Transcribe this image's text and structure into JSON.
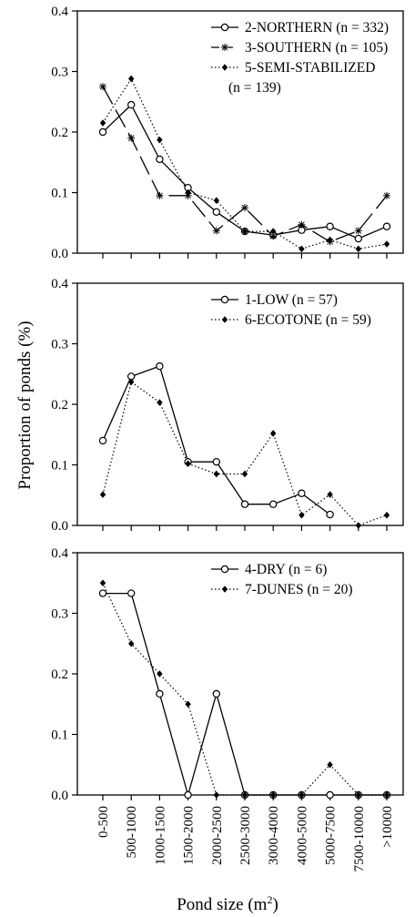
{
  "figure": {
    "ylabel": "Proportion of ponds (%)",
    "xlabel": "Pond size (m",
    "xlabel_sup": "2",
    "xlabel_tail": ")"
  },
  "chart_data": [
    {
      "type": "line",
      "categories": [
        "0-500",
        "500-1000",
        "1000-1500",
        "1500-2000",
        "2000-2500",
        "2500-3000",
        "3000-4000",
        "4000-5000",
        "5000-7500",
        "7500-10000",
        ">10000"
      ],
      "ylim": [
        0,
        0.4
      ],
      "yticks": [
        "0.0",
        "0.1",
        "0.2",
        "0.3",
        "0.4"
      ],
      "grid": false,
      "legend_position": "top-right",
      "series": [
        {
          "name": "2-NORTHERN (n = 332)",
          "marker": "open-circle",
          "line": "solid",
          "values": [
            0.2,
            0.245,
            0.155,
            0.108,
            0.068,
            0.036,
            0.03,
            0.038,
            0.044,
            0.024,
            0.044
          ]
        },
        {
          "name": "3-SOUTHERN (n = 105)",
          "marker": "asterisk",
          "line": "long-dash",
          "values": [
            0.275,
            0.19,
            0.095,
            0.095,
            0.037,
            0.075,
            0.028,
            0.047,
            0.019,
            0.037,
            0.095
          ]
        },
        {
          "name": "5-SEMI-STABILIZED",
          "name_line2": "(n = 139)",
          "marker": "filled-diamond",
          "line": "dotted",
          "values": [
            0.215,
            0.288,
            0.187,
            0.1,
            0.087,
            0.036,
            0.036,
            0.007,
            0.022,
            0.007,
            0.015
          ]
        }
      ]
    },
    {
      "type": "line",
      "categories": [
        "0-500",
        "500-1000",
        "1000-1500",
        "1500-2000",
        "2000-2500",
        "2500-3000",
        "3000-4000",
        "4000-5000",
        "5000-7500",
        "7500-10000",
        ">10000"
      ],
      "ylim": [
        0,
        0.4
      ],
      "yticks": [
        "0.0",
        "0.1",
        "0.2",
        "0.3",
        "0.4"
      ],
      "grid": false,
      "legend_position": "top-right",
      "series": [
        {
          "name": "1-LOW (n = 57)",
          "marker": "open-circle",
          "line": "solid",
          "values": [
            0.14,
            0.246,
            0.263,
            0.105,
            0.105,
            0.035,
            0.035,
            0.053,
            0.018,
            null,
            null
          ]
        },
        {
          "name": "6-ECOTONE (n = 59)",
          "marker": "filled-diamond",
          "line": "dotted",
          "values": [
            0.051,
            0.237,
            0.203,
            0.102,
            0.085,
            0.085,
            0.152,
            0.017,
            0.051,
            0.0,
            0.017
          ]
        }
      ]
    },
    {
      "type": "line",
      "categories": [
        "0-500",
        "500-1000",
        "1000-1500",
        "1500-2000",
        "2000-2500",
        "2500-3000",
        "3000-4000",
        "4000-5000",
        "5000-7500",
        "7500-10000",
        ">10000"
      ],
      "ylim": [
        0,
        0.4
      ],
      "yticks": [
        "0.0",
        "0.1",
        "0.2",
        "0.3",
        "0.4"
      ],
      "grid": false,
      "legend_position": "top-right",
      "series": [
        {
          "name": "4-DRY (n = 6)",
          "marker": "open-circle",
          "line": "solid",
          "values": [
            0.333,
            0.333,
            0.167,
            0.0,
            0.167,
            0.0,
            0.0,
            0.0,
            0.0,
            0.0,
            0.0
          ]
        },
        {
          "name": "7-DUNES (n = 20)",
          "marker": "filled-diamond",
          "line": "dotted",
          "values": [
            0.35,
            0.25,
            0.2,
            0.15,
            0.0,
            0.0,
            0.0,
            0.0,
            0.05,
            0.0,
            0.0
          ]
        }
      ]
    }
  ]
}
